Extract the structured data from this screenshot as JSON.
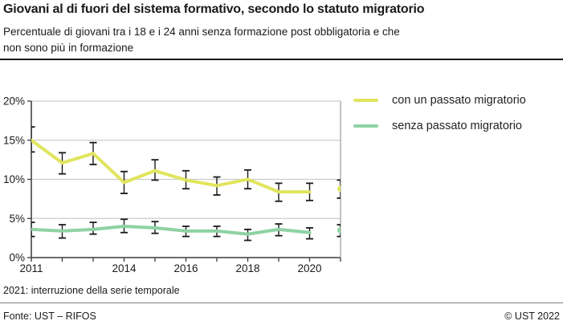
{
  "header": {
    "title": "Giovani al di fuori del sistema formativo, secondo lo statuto migratorio",
    "subtitle_line1": "Percentuale di giovani tra i 18 e i 24 anni senza formazione post obbligatoria e che",
    "subtitle_line2": "non sono più in formazione"
  },
  "legend": {
    "items": [
      {
        "label": "con un passato migratorio",
        "color": "#e1e55e"
      },
      {
        "label": "senza passato migratorio",
        "color": "#8fd2a4"
      }
    ]
  },
  "footnote": "2021: interruzione della serie temporale",
  "footer": {
    "source": "Fonte: UST – RIFOS",
    "copyright": "© UST 2022"
  },
  "chart_data": {
    "type": "line",
    "title": "Giovani al di fuori del sistema formativo, secondo lo statuto migratorio",
    "x": [
      2011,
      2012,
      2013,
      2014,
      2015,
      2016,
      2017,
      2018,
      2019,
      2020,
      2021
    ],
    "xtick_labels": [
      "2011",
      "2014",
      "2016",
      "2018",
      "2020"
    ],
    "ylim": [
      0,
      20
    ],
    "yticks": [
      0,
      5,
      10,
      15,
      20
    ],
    "ytick_suffix": "%",
    "grid": true,
    "legend_position": "right-top",
    "break_year": 2021,
    "break_note": "2021 plotted as isolated points (time-series break)",
    "error_bars": true,
    "series": [
      {
        "name": "con un passato migratorio",
        "color": "#e1e55e",
        "values": [
          15.0,
          12.1,
          13.3,
          9.6,
          11.1,
          9.9,
          9.2,
          10.0,
          8.4,
          8.4,
          8.8
        ],
        "err_lo": [
          13.5,
          10.7,
          11.9,
          8.2,
          9.9,
          8.8,
          8.0,
          8.8,
          7.2,
          7.3,
          7.6
        ],
        "err_hi": [
          16.7,
          13.4,
          14.7,
          11.0,
          12.5,
          11.1,
          10.3,
          11.2,
          9.5,
          9.5,
          9.9
        ]
      },
      {
        "name": "senza passato migratorio",
        "color": "#8fd2a4",
        "values": [
          3.6,
          3.4,
          3.6,
          4.0,
          3.8,
          3.4,
          3.4,
          3.0,
          3.6,
          3.2,
          3.5
        ],
        "err_lo": [
          2.7,
          2.5,
          3.0,
          3.2,
          3.1,
          2.7,
          2.7,
          2.2,
          2.8,
          2.4,
          2.7
        ],
        "err_hi": [
          4.5,
          4.2,
          4.5,
          4.9,
          4.6,
          4.0,
          4.0,
          3.6,
          4.3,
          3.8,
          4.2
        ]
      }
    ],
    "axis_colors": {
      "grid": "#cccccc",
      "axis": "#3a3a3a",
      "right_border": "#a3a3a3",
      "error_bar": "#1a1a1a"
    }
  }
}
